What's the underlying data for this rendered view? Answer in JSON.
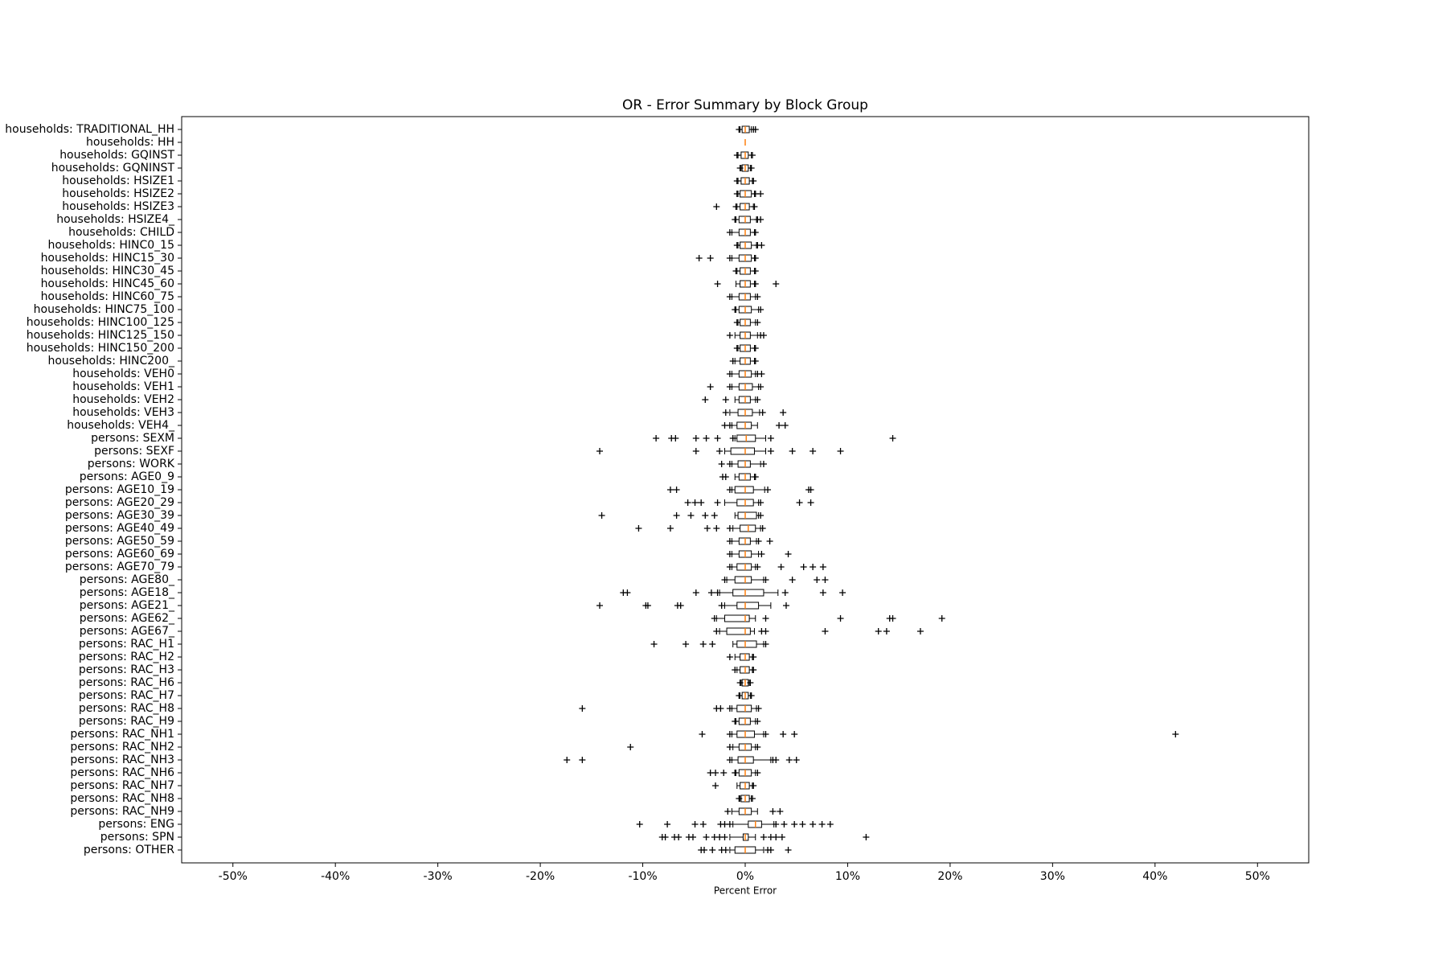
{
  "chart_data": {
    "type": "box",
    "title": "OR - Error Summary by Block Group",
    "xlabel": "Percent Error",
    "categories": [
      "households: TRADITIONAL_HH",
      "households: HH",
      "households: GQINST",
      "households: GQNINST",
      "households: HSIZE1",
      "households: HSIZE2",
      "households: HSIZE3",
      "households: HSIZE4_",
      "households: CHILD",
      "households: HINC0_15",
      "households: HINC15_30",
      "households: HINC30_45",
      "households: HINC45_60",
      "households: HINC60_75",
      "households: HINC75_100",
      "households: HINC100_125",
      "households: HINC125_150",
      "households: HINC150_200",
      "households: HINC200_",
      "households: VEH0",
      "households: VEH1",
      "households: VEH2",
      "households: VEH3",
      "households: VEH4_",
      "persons: SEXM",
      "persons: SEXF",
      "persons: WORK",
      "persons: AGE0_9",
      "persons: AGE10_19",
      "persons: AGE20_29",
      "persons: AGE30_39",
      "persons: AGE40_49",
      "persons: AGE50_59",
      "persons: AGE60_69",
      "persons: AGE70_79",
      "persons: AGE80_",
      "persons: AGE18_",
      "persons: AGE21_",
      "persons: AGE62_",
      "persons: AGE67_",
      "persons: RAC_H1",
      "persons: RAC_H2",
      "persons: RAC_H3",
      "persons: RAC_H6",
      "persons: RAC_H7",
      "persons: RAC_H8",
      "persons: RAC_H9",
      "persons: RAC_NH1",
      "persons: RAC_NH2",
      "persons: RAC_NH3",
      "persons: RAC_NH6",
      "persons: RAC_NH7",
      "persons: RAC_NH8",
      "persons: RAC_NH9",
      "persons: ENG",
      "persons: SPN",
      "persons: OTHER"
    ],
    "q1": [
      -0.3,
      0,
      -0.4,
      -0.3,
      -0.4,
      -0.5,
      -0.5,
      -0.6,
      -0.6,
      -0.5,
      -0.6,
      -0.5,
      -0.5,
      -0.6,
      -0.6,
      -0.5,
      -0.5,
      -0.5,
      -0.5,
      -0.6,
      -0.6,
      -0.6,
      -0.7,
      -0.8,
      -0.8,
      -1.4,
      -0.7,
      -0.6,
      -1.0,
      -0.8,
      -0.7,
      -0.5,
      -0.6,
      -0.6,
      -0.8,
      -1.0,
      -1.2,
      -0.8,
      -2.0,
      -1.8,
      -0.8,
      -0.5,
      -0.5,
      -0.3,
      -0.3,
      -0.8,
      -0.6,
      -0.8,
      -0.6,
      -0.7,
      -0.6,
      -0.5,
      -0.4,
      -0.6,
      0.3,
      -0.2,
      -1.0
    ],
    "median": [
      0,
      0,
      0,
      0,
      0,
      0,
      0,
      0,
      0,
      0,
      0,
      0,
      0,
      0,
      0,
      0,
      0,
      0,
      0,
      0,
      0,
      0,
      0,
      0,
      0.1,
      0,
      0,
      0,
      0,
      0,
      0,
      0.3,
      0,
      0,
      0,
      0,
      0,
      0,
      0,
      0,
      0,
      0,
      0,
      0,
      0,
      0,
      0,
      0,
      0,
      0,
      0,
      0,
      0,
      0,
      1.0,
      0,
      0
    ],
    "q3": [
      0.4,
      0,
      0.3,
      0.3,
      0.4,
      0.6,
      0.4,
      0.5,
      0.5,
      0.6,
      0.6,
      0.5,
      0.5,
      0.5,
      0.6,
      0.5,
      0.5,
      0.5,
      0.5,
      0.6,
      0.7,
      0.5,
      0.7,
      0.6,
      1.0,
      0.9,
      0.5,
      0.5,
      0.8,
      0.8,
      1.1,
      1.0,
      0.5,
      0.6,
      0.6,
      0.6,
      1.8,
      1.3,
      0.4,
      0.5,
      1.1,
      0.4,
      0.4,
      0.3,
      0.3,
      0.6,
      0.5,
      0.9,
      0.6,
      0.8,
      0.6,
      0.4,
      0.4,
      0.6,
      1.6,
      0.3,
      1.0
    ],
    "whislo": [
      -0.5,
      0,
      -0.7,
      -0.4,
      -0.7,
      -0.7,
      -0.8,
      -0.9,
      -1.3,
      -0.7,
      -1.3,
      -0.8,
      -0.9,
      -1.3,
      -0.9,
      -0.7,
      -1.0,
      -0.7,
      -1.0,
      -1.3,
      -1.3,
      -1.0,
      -1.5,
      -1.3,
      -1.0,
      -2.0,
      -1.3,
      -1.0,
      -1.3,
      -2.0,
      -1.0,
      -1.2,
      -1.3,
      -1.3,
      -1.3,
      -1.8,
      -2.5,
      -2.0,
      -2.8,
      -2.5,
      -1.2,
      -1.0,
      -0.8,
      -0.4,
      -0.5,
      -1.3,
      -0.9,
      -1.3,
      -1.2,
      -1.3,
      -0.9,
      -0.8,
      -0.5,
      -1.3,
      -1.2,
      -1.5,
      -1.5
    ],
    "whishi": [
      0.6,
      0,
      0.6,
      0.5,
      0.7,
      0.9,
      0.8,
      1.1,
      0.9,
      1.1,
      0.9,
      0.9,
      0.9,
      1.0,
      1.3,
      1.0,
      1.2,
      0.9,
      0.9,
      1.0,
      1.3,
      1.0,
      1.4,
      1.2,
      2.0,
      2.0,
      1.5,
      0.9,
      1.9,
      1.3,
      1.3,
      1.5,
      1.1,
      1.3,
      1.0,
      1.8,
      3.2,
      2.5,
      1.0,
      0.9,
      1.8,
      0.7,
      0.7,
      0.4,
      0.5,
      1.1,
      1.0,
      1.8,
      1.0,
      2.5,
      1.0,
      0.7,
      0.6,
      1.2,
      2.8,
      1.0,
      1.8
    ],
    "fliers": [
      [
        -0.6,
        0.8,
        1.0
      ],
      [],
      [
        -0.8,
        0.7
      ],
      [
        -0.5,
        0.6
      ],
      [
        -0.8,
        0.8
      ],
      [
        -0.8,
        1.0,
        1.5
      ],
      [
        -2.8,
        -0.9,
        0.9
      ],
      [
        -1.0,
        1.2,
        1.5
      ],
      [
        -1.5,
        1.0
      ],
      [
        -0.8,
        1.2,
        1.6
      ],
      [
        -4.5,
        -3.4,
        -1.5,
        1.0
      ],
      [
        -0.9,
        1.0
      ],
      [
        -2.7,
        1.0,
        3.0
      ],
      [
        -1.5,
        1.2
      ],
      [
        -1.0,
        1.5
      ],
      [
        -0.8,
        1.2
      ],
      [
        -1.5,
        1.5,
        1.8
      ],
      [
        -0.8,
        1.0
      ],
      [
        -1.2,
        1.0
      ],
      [
        -1.5,
        1.2,
        1.6
      ],
      [
        -3.4,
        -1.5,
        1.5
      ],
      [
        -3.9,
        -1.9,
        1.2
      ],
      [
        -1.9,
        1.7,
        3.7
      ],
      [
        -2.0,
        -1.5,
        3.3,
        3.9
      ],
      [
        -8.7,
        -7.2,
        -6.8,
        -4.8,
        -3.8,
        -2.7,
        -1.2,
        2.5,
        14.4
      ],
      [
        -14.2,
        -4.8,
        -2.5,
        2.5,
        4.6,
        6.6,
        9.3
      ],
      [
        -2.3,
        -1.5,
        1.8
      ],
      [
        -2.2,
        -1.9,
        1.0
      ],
      [
        -7.3,
        -6.7,
        -1.5,
        2.2,
        6.2,
        6.4
      ],
      [
        -5.6,
        -4.9,
        -4.3,
        -2.7,
        1.5,
        5.3,
        6.4
      ],
      [
        -14.0,
        -6.7,
        -5.3,
        -3.9,
        -3.0,
        1.5
      ],
      [
        -10.4,
        -7.3,
        -3.7,
        -2.8,
        -1.5,
        1.7
      ],
      [
        -1.5,
        1.3,
        2.4
      ],
      [
        -1.5,
        1.6,
        4.2
      ],
      [
        -1.5,
        1.2,
        3.5,
        5.7,
        6.6,
        7.6
      ],
      [
        -2.0,
        2.0,
        4.6,
        7.0,
        7.8
      ],
      [
        -11.9,
        -11.5,
        -4.8,
        -3.3,
        -2.7,
        3.9,
        7.6,
        9.5
      ],
      [
        -14.2,
        -9.7,
        -9.5,
        -6.6,
        -6.3,
        -2.3,
        4.0
      ],
      [
        -3.0,
        2.0,
        9.3,
        14.1,
        14.4,
        19.2
      ],
      [
        -2.8,
        1.6,
        2.0,
        7.8,
        13.0,
        13.8,
        17.1
      ],
      [
        -8.9,
        -5.8,
        -4.1,
        -3.2,
        2.0
      ],
      [
        -1.5,
        0.8
      ],
      [
        -1.0,
        0.8
      ],
      [
        -0.5,
        0.5
      ],
      [
        -0.6,
        0.6
      ],
      [
        -15.9,
        -2.8,
        -2.4,
        -1.5,
        1.3
      ],
      [
        -1.0,
        1.2
      ],
      [
        -4.2,
        -1.5,
        2.0,
        3.7,
        4.8,
        42.0
      ],
      [
        -11.2,
        -1.5,
        1.2
      ],
      [
        -17.4,
        -15.9,
        -1.5,
        2.7,
        3.0,
        4.3,
        5.0
      ],
      [
        -3.4,
        -2.9,
        -2.1,
        -1.0,
        1.2
      ],
      [
        -2.9,
        0.8
      ],
      [
        -0.6,
        0.7
      ],
      [
        -1.7,
        2.7,
        3.4
      ],
      [
        -10.3,
        -7.6,
        -4.9,
        -4.1,
        -2.4,
        -2.0,
        -1.5,
        3.0,
        3.8,
        4.8,
        5.6,
        6.6,
        7.5,
        8.3
      ],
      [
        -8.1,
        -7.8,
        -6.9,
        -6.5,
        -5.5,
        -5.1,
        -3.8,
        -3.0,
        -2.5,
        -2.0,
        1.8,
        2.5,
        3.0,
        3.6,
        11.8
      ],
      [
        -4.3,
        -4.0,
        -3.2,
        -2.3,
        -1.9,
        2.2,
        2.5,
        4.2
      ]
    ],
    "box_color": "#000000",
    "median_color": "#ff7f0e",
    "xlim": [
      -55,
      55
    ],
    "xticks": [
      {
        "value": -50,
        "label": "-50%"
      },
      {
        "value": -40,
        "label": "-40%"
      },
      {
        "value": -30,
        "label": "-30%"
      },
      {
        "value": -20,
        "label": "-20%"
      },
      {
        "value": -10,
        "label": "-10%"
      },
      {
        "value": 0,
        "label": "0%"
      },
      {
        "value": 10,
        "label": "10%"
      },
      {
        "value": 20,
        "label": "20%"
      },
      {
        "value": 30,
        "label": "30%"
      },
      {
        "value": 40,
        "label": "40%"
      },
      {
        "value": 50,
        "label": "50%"
      }
    ]
  }
}
